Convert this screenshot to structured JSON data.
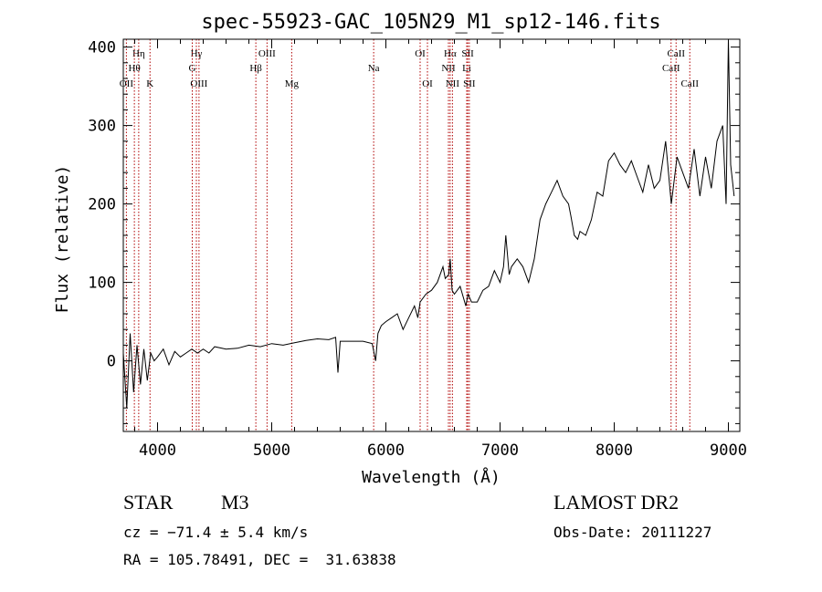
{
  "chart_data": {
    "type": "line",
    "title": "spec-55923-GAC_105N29_M1_sp12-146.fits",
    "xlabel": "Wavelength (Å)",
    "ylabel": "Flux (relative)",
    "xlim": [
      3700,
      9100
    ],
    "ylim": [
      -90,
      410
    ],
    "x_ticks": [
      4000,
      5000,
      6000,
      7000,
      8000,
      9000
    ],
    "x_tick_labels": [
      "4000",
      "5000",
      "6000",
      "7000",
      "8000",
      "9000"
    ],
    "y_ticks": [
      0,
      100,
      200,
      300,
      400
    ],
    "y_tick_labels": [
      "0",
      "100",
      "200",
      "300",
      "400"
    ],
    "grid": false,
    "line_color": "#000000",
    "marker_color": "#b00000",
    "lines": [
      {
        "label": "Hη",
        "x": 3835,
        "row": 0
      },
      {
        "label": "Hθ",
        "x": 3797,
        "row": 1
      },
      {
        "label": "OII",
        "x": 3727,
        "row": 2
      },
      {
        "label": "K",
        "x": 3934,
        "row": 2
      },
      {
        "label": "Hγ",
        "x": 4340,
        "row": 0
      },
      {
        "label": "G",
        "x": 4304,
        "row": 1
      },
      {
        "label": "OIII",
        "x": 4363,
        "row": 2
      },
      {
        "label": "OIII",
        "x": 4959,
        "row": 0
      },
      {
        "label": "Hβ",
        "x": 4861,
        "row": 1
      },
      {
        "label": "Mg",
        "x": 5175,
        "row": 2
      },
      {
        "label": "Na",
        "x": 5893,
        "row": 1
      },
      {
        "label": "OI",
        "x": 6300,
        "row": 0
      },
      {
        "label": "OI",
        "x": 6364,
        "row": 2
      },
      {
        "label": "Hα",
        "x": 6563,
        "row": 0
      },
      {
        "label": "NII",
        "x": 6548,
        "row": 1
      },
      {
        "label": "NII",
        "x": 6583,
        "row": 2
      },
      {
        "label": "SII",
        "x": 6717,
        "row": 0
      },
      {
        "label": "Li",
        "x": 6708,
        "row": 1
      },
      {
        "label": "SII",
        "x": 6731,
        "row": 2
      },
      {
        "label": "CaII",
        "x": 8542,
        "row": 0
      },
      {
        "label": "CaII",
        "x": 8498,
        "row": 1
      },
      {
        "label": "CaII",
        "x": 8662,
        "row": 2
      }
    ],
    "spectrum": {
      "x": [
        3700,
        3730,
        3760,
        3790,
        3820,
        3850,
        3880,
        3910,
        3940,
        3970,
        4000,
        4050,
        4100,
        4150,
        4200,
        4250,
        4300,
        4350,
        4400,
        4450,
        4500,
        4600,
        4700,
        4800,
        4900,
        5000,
        5100,
        5200,
        5300,
        5400,
        5500,
        5560,
        5580,
        5600,
        5700,
        5800,
        5880,
        5910,
        5930,
        5960,
        6000,
        6050,
        6100,
        6150,
        6200,
        6250,
        6280,
        6300,
        6350,
        6400,
        6450,
        6500,
        6520,
        6550,
        6563,
        6580,
        6600,
        6650,
        6700,
        6720,
        6750,
        6800,
        6850,
        6900,
        6950,
        7000,
        7030,
        7050,
        7080,
        7100,
        7150,
        7200,
        7250,
        7300,
        7350,
        7400,
        7450,
        7500,
        7550,
        7600,
        7620,
        7650,
        7680,
        7700,
        7750,
        7800,
        7850,
        7900,
        7950,
        8000,
        8050,
        8100,
        8150,
        8200,
        8250,
        8300,
        8350,
        8400,
        8450,
        8500,
        8550,
        8600,
        8650,
        8700,
        8750,
        8800,
        8850,
        8900,
        8950,
        8980,
        9000,
        9020,
        9050
      ],
      "y": [
        10,
        -60,
        35,
        -40,
        20,
        -30,
        15,
        -25,
        10,
        0,
        5,
        15,
        -5,
        12,
        5,
        10,
        15,
        10,
        15,
        10,
        18,
        15,
        16,
        20,
        18,
        22,
        20,
        23,
        26,
        28,
        27,
        30,
        -15,
        25,
        25,
        25,
        22,
        0,
        35,
        45,
        50,
        55,
        60,
        40,
        55,
        70,
        55,
        75,
        85,
        90,
        100,
        120,
        105,
        110,
        130,
        90,
        85,
        95,
        70,
        85,
        75,
        75,
        90,
        95,
        115,
        100,
        120,
        160,
        110,
        120,
        130,
        120,
        100,
        130,
        180,
        200,
        215,
        230,
        210,
        200,
        185,
        160,
        155,
        165,
        160,
        180,
        215,
        210,
        255,
        265,
        250,
        240,
        255,
        235,
        215,
        250,
        220,
        230,
        280,
        200,
        260,
        240,
        220,
        270,
        210,
        260,
        220,
        280,
        300,
        200,
        420,
        250,
        210
      ]
    }
  },
  "info": {
    "class": "STAR",
    "subclass": "M3",
    "survey": "LAMOST DR2",
    "cz": "cz = −71.4 ± 5.4 km/s",
    "obs_date": "Obs-Date: 20111227",
    "radec": "RA = 105.78491, DEC =  31.63838"
  }
}
